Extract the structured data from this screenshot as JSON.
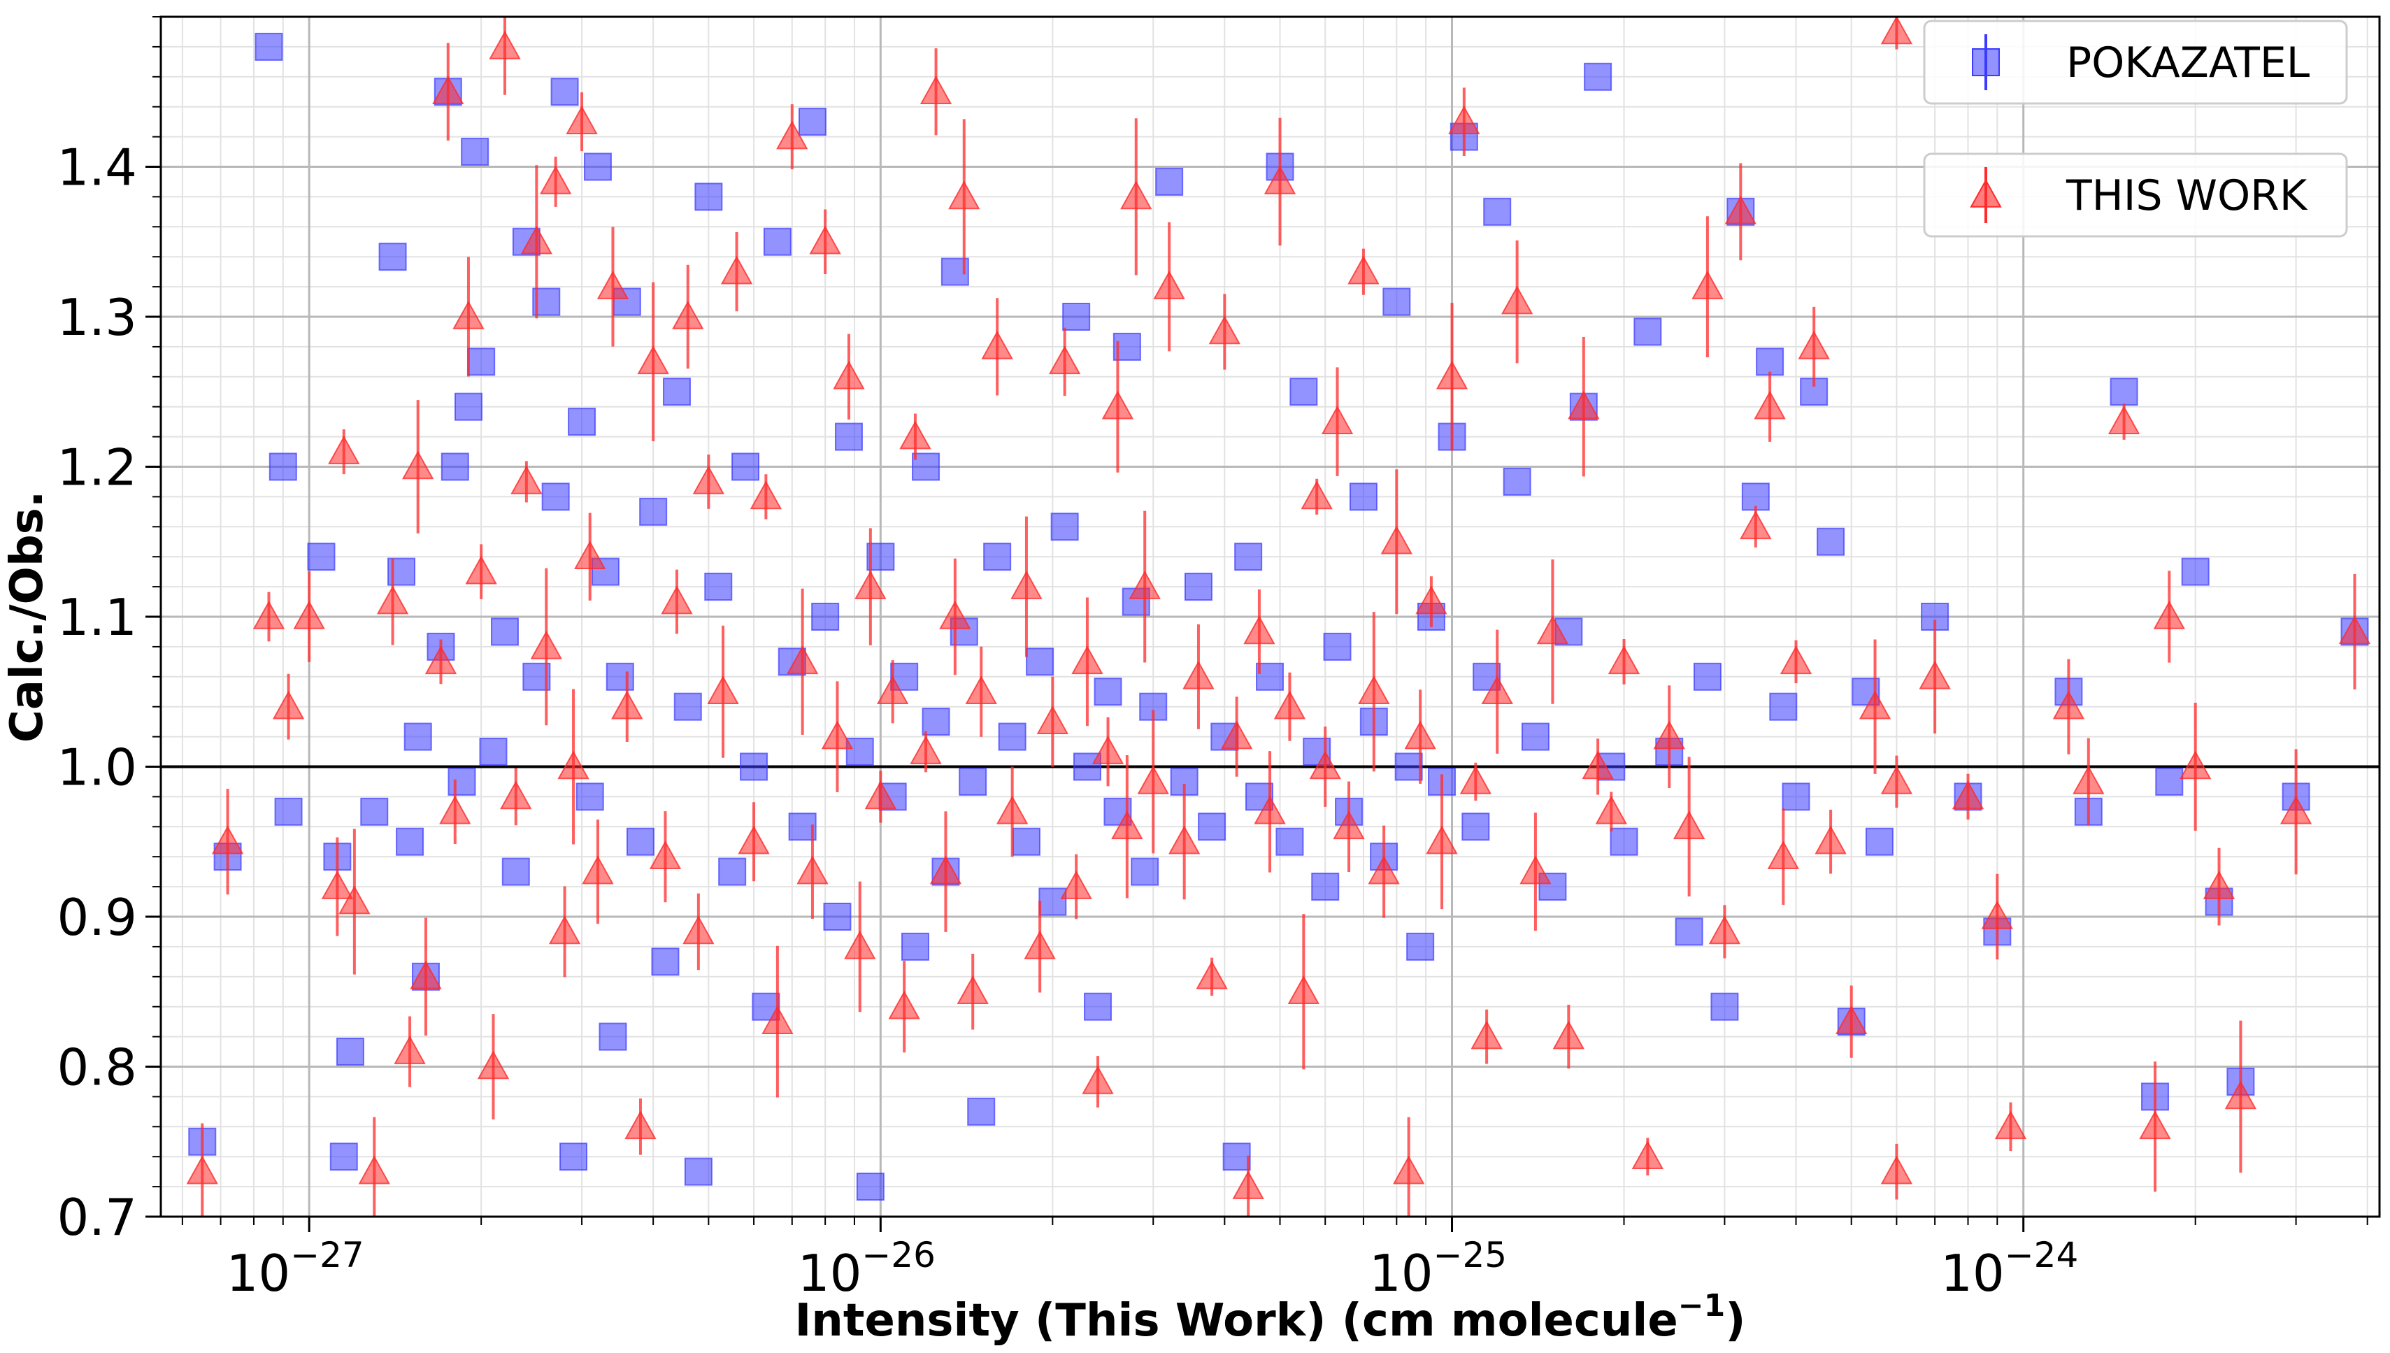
{
  "chart_data": {
    "type": "scatter",
    "xlabel": "Intensity (This Work) (cm molecule",
    "xlabel_exponent": "−1",
    "xlabel_close": ")",
    "ylabel": "Calc./Obs.",
    "x_scale": "log",
    "xlim": [
      5.5e-28,
      4.2e-24
    ],
    "ylim": [
      0.7,
      1.5
    ],
    "x_ticks": [
      {
        "value": 1e-27,
        "base": "10",
        "exp": "−27"
      },
      {
        "value": 1e-26,
        "base": "10",
        "exp": "−26"
      },
      {
        "value": 1e-25,
        "base": "10",
        "exp": "−25"
      },
      {
        "value": 1e-24,
        "base": "10",
        "exp": "−24"
      }
    ],
    "y_ticks": [
      "0.7",
      "0.8",
      "0.9",
      "1.0",
      "1.1",
      "1.2",
      "1.3",
      "1.4"
    ],
    "reference_line": 1.0,
    "grid": true,
    "legend_position": "top-right",
    "series": [
      {
        "name": "POKAZATEL",
        "marker": "square",
        "color": "#3b3bff",
        "points": [
          [
            6.5e-28,
            0.75
          ],
          [
            7.2e-28,
            0.94
          ],
          [
            8.5e-28,
            1.48
          ],
          [
            9e-28,
            1.2
          ],
          [
            9.2e-28,
            0.97
          ],
          [
            1.05e-27,
            1.14
          ],
          [
            1.12e-27,
            0.94
          ],
          [
            1.15e-27,
            0.74
          ],
          [
            1.18e-27,
            0.81
          ],
          [
            1.3e-27,
            0.97
          ],
          [
            1.4e-27,
            1.34
          ],
          [
            1.45e-27,
            1.13
          ],
          [
            1.5e-27,
            0.95
          ],
          [
            1.55e-27,
            1.02
          ],
          [
            1.6e-27,
            0.86
          ],
          [
            1.7e-27,
            1.08
          ],
          [
            1.75e-27,
            1.45
          ],
          [
            1.8e-27,
            1.2
          ],
          [
            1.85e-27,
            0.99
          ],
          [
            1.9e-27,
            1.24
          ],
          [
            1.95e-27,
            1.41
          ],
          [
            2e-27,
            1.27
          ],
          [
            2.1e-27,
            1.01
          ],
          [
            2.2e-27,
            1.09
          ],
          [
            2.3e-27,
            0.93
          ],
          [
            2.4e-27,
            1.35
          ],
          [
            2.5e-27,
            1.06
          ],
          [
            2.6e-27,
            1.31
          ],
          [
            2.7e-27,
            1.18
          ],
          [
            2.8e-27,
            1.45
          ],
          [
            2.9e-27,
            0.74
          ],
          [
            3e-27,
            1.23
          ],
          [
            3.1e-27,
            0.98
          ],
          [
            3.2e-27,
            1.4
          ],
          [
            3.3e-27,
            1.13
          ],
          [
            3.4e-27,
            0.82
          ],
          [
            3.5e-27,
            1.06
          ],
          [
            3.6e-27,
            1.31
          ],
          [
            3.8e-27,
            0.95
          ],
          [
            4e-27,
            1.17
          ],
          [
            4.2e-27,
            0.87
          ],
          [
            4.4e-27,
            1.25
          ],
          [
            4.6e-27,
            1.04
          ],
          [
            4.8e-27,
            0.73
          ],
          [
            5e-27,
            1.38
          ],
          [
            5.2e-27,
            1.12
          ],
          [
            5.5e-27,
            0.93
          ],
          [
            5.8e-27,
            1.2
          ],
          [
            6e-27,
            1.0
          ],
          [
            6.3e-27,
            0.84
          ],
          [
            6.6e-27,
            1.35
          ],
          [
            7e-27,
            1.07
          ],
          [
            7.3e-27,
            0.96
          ],
          [
            7.6e-27,
            1.43
          ],
          [
            8e-27,
            1.1
          ],
          [
            8.4e-27,
            0.9
          ],
          [
            8.8e-27,
            1.22
          ],
          [
            9.2e-27,
            1.01
          ],
          [
            9.6e-27,
            0.72
          ],
          [
            1e-26,
            1.14
          ],
          [
            1.05e-26,
            0.98
          ],
          [
            1.1e-26,
            1.06
          ],
          [
            1.15e-26,
            0.88
          ],
          [
            1.2e-26,
            1.2
          ],
          [
            1.25e-26,
            1.03
          ],
          [
            1.3e-26,
            0.93
          ],
          [
            1.35e-26,
            1.33
          ],
          [
            1.4e-26,
            1.09
          ],
          [
            1.45e-26,
            0.99
          ],
          [
            1.5e-26,
            0.77
          ],
          [
            1.6e-26,
            1.14
          ],
          [
            1.7e-26,
            1.02
          ],
          [
            1.8e-26,
            0.95
          ],
          [
            1.9e-26,
            1.07
          ],
          [
            2e-26,
            0.91
          ],
          [
            2.1e-26,
            1.16
          ],
          [
            2.2e-26,
            1.3
          ],
          [
            2.3e-26,
            1.0
          ],
          [
            2.4e-26,
            0.84
          ],
          [
            2.5e-26,
            1.05
          ],
          [
            2.6e-26,
            0.97
          ],
          [
            2.7e-26,
            1.28
          ],
          [
            2.8e-26,
            1.11
          ],
          [
            2.9e-26,
            0.93
          ],
          [
            3e-26,
            1.04
          ],
          [
            3.2e-26,
            1.39
          ],
          [
            3.4e-26,
            0.99
          ],
          [
            3.6e-26,
            1.12
          ],
          [
            3.8e-26,
            0.96
          ],
          [
            4e-26,
            1.02
          ],
          [
            4.2e-26,
            0.74
          ],
          [
            4.4e-26,
            1.14
          ],
          [
            4.6e-26,
            0.98
          ],
          [
            4.8e-26,
            1.06
          ],
          [
            5e-26,
            1.4
          ],
          [
            5.2e-26,
            0.95
          ],
          [
            5.5e-26,
            1.25
          ],
          [
            5.8e-26,
            1.01
          ],
          [
            6e-26,
            0.92
          ],
          [
            6.3e-26,
            1.08
          ],
          [
            6.6e-26,
            0.97
          ],
          [
            7e-26,
            1.18
          ],
          [
            7.3e-26,
            1.03
          ],
          [
            7.6e-26,
            0.94
          ],
          [
            8e-26,
            1.31
          ],
          [
            8.4e-26,
            1.0
          ],
          [
            8.8e-26,
            0.88
          ],
          [
            9.2e-26,
            1.1
          ],
          [
            9.6e-26,
            0.99
          ],
          [
            1e-25,
            1.22
          ],
          [
            1.05e-25,
            1.42
          ],
          [
            1.1e-25,
            0.96
          ],
          [
            1.15e-25,
            1.06
          ],
          [
            1.2e-25,
            1.37
          ],
          [
            1.3e-25,
            1.19
          ],
          [
            1.4e-25,
            1.02
          ],
          [
            1.5e-25,
            0.92
          ],
          [
            1.6e-25,
            1.09
          ],
          [
            1.7e-25,
            1.24
          ],
          [
            1.8e-25,
            1.46
          ],
          [
            1.9e-25,
            1.0
          ],
          [
            2e-25,
            0.95
          ],
          [
            2.2e-25,
            1.29
          ],
          [
            2.4e-25,
            1.01
          ],
          [
            2.6e-25,
            0.89
          ],
          [
            2.8e-25,
            1.06
          ],
          [
            3e-25,
            0.84
          ],
          [
            3.2e-25,
            1.37
          ],
          [
            3.4e-25,
            1.18
          ],
          [
            3.6e-25,
            1.27
          ],
          [
            3.8e-25,
            1.04
          ],
          [
            4e-25,
            0.98
          ],
          [
            4.3e-25,
            1.25
          ],
          [
            4.6e-25,
            1.15
          ],
          [
            5e-25,
            0.83
          ],
          [
            5.3e-25,
            1.05
          ],
          [
            5.6e-25,
            0.95
          ],
          [
            7e-25,
            1.1
          ],
          [
            8e-25,
            0.98
          ],
          [
            9e-25,
            0.89
          ],
          [
            1.2e-24,
            1.05
          ],
          [
            1.3e-24,
            0.97
          ],
          [
            1.5e-24,
            1.25
          ],
          [
            1.7e-24,
            0.78
          ],
          [
            1.8e-24,
            0.99
          ],
          [
            2e-24,
            1.13
          ],
          [
            2.2e-24,
            0.91
          ],
          [
            2.4e-24,
            0.79
          ],
          [
            3e-24,
            0.98
          ],
          [
            3.8e-24,
            1.09
          ]
        ]
      },
      {
        "name": "THIS WORK",
        "marker": "triangle",
        "color": "#ff2a2a",
        "points": [
          [
            6.5e-28,
            0.73
          ],
          [
            7.2e-28,
            0.95
          ],
          [
            8.5e-28,
            1.1
          ],
          [
            9.2e-28,
            1.04
          ],
          [
            1e-27,
            1.1
          ],
          [
            1.12e-27,
            0.92
          ],
          [
            1.15e-27,
            1.21
          ],
          [
            1.2e-27,
            0.91
          ],
          [
            1.3e-27,
            0.73
          ],
          [
            1.4e-27,
            1.11
          ],
          [
            1.5e-27,
            0.81
          ],
          [
            1.55e-27,
            1.2
          ],
          [
            1.6e-27,
            0.86
          ],
          [
            1.7e-27,
            1.07
          ],
          [
            1.75e-27,
            1.45
          ],
          [
            1.8e-27,
            0.97
          ],
          [
            1.9e-27,
            1.3
          ],
          [
            2e-27,
            1.13
          ],
          [
            2.1e-27,
            0.8
          ],
          [
            2.2e-27,
            1.48
          ],
          [
            2.3e-27,
            0.98
          ],
          [
            2.4e-27,
            1.19
          ],
          [
            2.5e-27,
            1.35
          ],
          [
            2.6e-27,
            1.08
          ],
          [
            2.7e-27,
            1.39
          ],
          [
            2.8e-27,
            0.89
          ],
          [
            2.9e-27,
            1.0
          ],
          [
            3e-27,
            1.43
          ],
          [
            3.1e-27,
            1.14
          ],
          [
            3.2e-27,
            0.93
          ],
          [
            3.4e-27,
            1.32
          ],
          [
            3.6e-27,
            1.04
          ],
          [
            3.8e-27,
            0.76
          ],
          [
            4e-27,
            1.27
          ],
          [
            4.2e-27,
            0.94
          ],
          [
            4.4e-27,
            1.11
          ],
          [
            4.6e-27,
            1.3
          ],
          [
            4.8e-27,
            0.89
          ],
          [
            5e-27,
            1.19
          ],
          [
            5.3e-27,
            1.05
          ],
          [
            5.6e-27,
            1.33
          ],
          [
            6e-27,
            0.95
          ],
          [
            6.3e-27,
            1.18
          ],
          [
            6.6e-27,
            0.83
          ],
          [
            7e-27,
            1.42
          ],
          [
            7.3e-27,
            1.07
          ],
          [
            7.6e-27,
            0.93
          ],
          [
            8e-27,
            1.35
          ],
          [
            8.4e-27,
            1.02
          ],
          [
            8.8e-27,
            1.26
          ],
          [
            9.2e-27,
            0.88
          ],
          [
            9.6e-27,
            1.12
          ],
          [
            1e-26,
            0.98
          ],
          [
            1.05e-26,
            1.05
          ],
          [
            1.1e-26,
            0.84
          ],
          [
            1.15e-26,
            1.22
          ],
          [
            1.2e-26,
            1.01
          ],
          [
            1.25e-26,
            1.45
          ],
          [
            1.3e-26,
            0.93
          ],
          [
            1.35e-26,
            1.1
          ],
          [
            1.4e-26,
            1.38
          ],
          [
            1.45e-26,
            0.85
          ],
          [
            1.5e-26,
            1.05
          ],
          [
            1.6e-26,
            1.28
          ],
          [
            1.7e-26,
            0.97
          ],
          [
            1.8e-26,
            1.12
          ],
          [
            1.9e-26,
            0.88
          ],
          [
            2e-26,
            1.03
          ],
          [
            2.1e-26,
            1.27
          ],
          [
            2.2e-26,
            0.92
          ],
          [
            2.3e-26,
            1.07
          ],
          [
            2.4e-26,
            0.79
          ],
          [
            2.5e-26,
            1.01
          ],
          [
            2.6e-26,
            1.24
          ],
          [
            2.7e-26,
            0.96
          ],
          [
            2.8e-26,
            1.38
          ],
          [
            2.9e-26,
            1.12
          ],
          [
            3e-26,
            0.99
          ],
          [
            3.2e-26,
            1.32
          ],
          [
            3.4e-26,
            0.95
          ],
          [
            3.6e-26,
            1.06
          ],
          [
            3.8e-26,
            0.86
          ],
          [
            4e-26,
            1.29
          ],
          [
            4.2e-26,
            1.02
          ],
          [
            4.4e-26,
            0.72
          ],
          [
            4.6e-26,
            1.09
          ],
          [
            4.8e-26,
            0.97
          ],
          [
            5e-26,
            1.39
          ],
          [
            5.2e-26,
            1.04
          ],
          [
            5.5e-26,
            0.85
          ],
          [
            5.8e-26,
            1.18
          ],
          [
            6e-26,
            1.0
          ],
          [
            6.3e-26,
            1.23
          ],
          [
            6.6e-26,
            0.96
          ],
          [
            7e-26,
            1.33
          ],
          [
            7.3e-26,
            1.05
          ],
          [
            7.6e-26,
            0.93
          ],
          [
            8e-26,
            1.15
          ],
          [
            8.4e-26,
            0.73
          ],
          [
            8.8e-26,
            1.02
          ],
          [
            9.2e-26,
            1.11
          ],
          [
            9.6e-26,
            0.95
          ],
          [
            1e-25,
            1.26
          ],
          [
            1.05e-25,
            1.43
          ],
          [
            1.1e-25,
            0.99
          ],
          [
            1.15e-25,
            0.82
          ],
          [
            1.2e-25,
            1.05
          ],
          [
            1.3e-25,
            1.31
          ],
          [
            1.4e-25,
            0.93
          ],
          [
            1.5e-25,
            1.09
          ],
          [
            1.6e-25,
            0.82
          ],
          [
            1.7e-25,
            1.24
          ],
          [
            1.8e-25,
            1.0
          ],
          [
            1.9e-25,
            0.97
          ],
          [
            2e-25,
            1.07
          ],
          [
            2.2e-25,
            0.74
          ],
          [
            2.4e-25,
            1.02
          ],
          [
            2.6e-25,
            0.96
          ],
          [
            2.8e-25,
            1.32
          ],
          [
            3e-25,
            0.89
          ],
          [
            3.2e-25,
            1.37
          ],
          [
            3.4e-25,
            1.16
          ],
          [
            3.6e-25,
            1.24
          ],
          [
            3.8e-25,
            0.94
          ],
          [
            4e-25,
            1.07
          ],
          [
            4.3e-25,
            1.28
          ],
          [
            4.6e-25,
            0.95
          ],
          [
            5e-25,
            0.83
          ],
          [
            5.5e-25,
            1.04
          ],
          [
            6e-25,
            0.99
          ],
          [
            6e-25,
            0.73
          ],
          [
            6e-25,
            1.49
          ],
          [
            7e-25,
            1.06
          ],
          [
            8e-25,
            0.98
          ],
          [
            9e-25,
            0.9
          ],
          [
            9.5e-25,
            0.76
          ],
          [
            1.2e-24,
            1.04
          ],
          [
            1.3e-24,
            0.99
          ],
          [
            1.5e-24,
            1.23
          ],
          [
            1.7e-24,
            0.76
          ],
          [
            1.8e-24,
            1.1
          ],
          [
            2e-24,
            1.0
          ],
          [
            2.2e-24,
            0.92
          ],
          [
            2.4e-24,
            0.78
          ],
          [
            3e-24,
            0.97
          ],
          [
            3.8e-24,
            1.09
          ]
        ]
      }
    ]
  }
}
